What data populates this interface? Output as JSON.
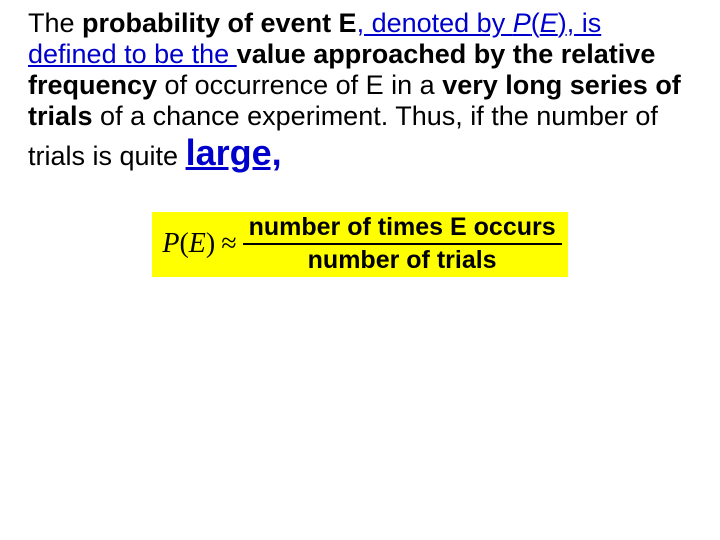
{
  "text": {
    "t1": "The ",
    "t2": "probability of event E",
    "t3": ", denoted by ",
    "t4_P": "P",
    "t4_open": "(",
    "t4_E": "E",
    "t4_close": ")",
    "t5": ", is defined to be the ",
    "t6": "value approached by the relative frequency",
    "t7": " of occurrence of E in a ",
    "t8": "very long series of trials",
    "t9": " of a chance experiment. Thus, if the number of trials is quite ",
    "t10": "large,"
  },
  "formula": {
    "pe_italic": "P",
    "pe_open": "(",
    "pe_E": "E",
    "pe_close": " )",
    "approx_sym": "≈",
    "numerator": "number of times E occurs",
    "denominator": "number of trials"
  },
  "colors": {
    "blue": "#0000cc",
    "highlight": "#ffff00",
    "text": "#000000",
    "bg": "#ffffff"
  }
}
